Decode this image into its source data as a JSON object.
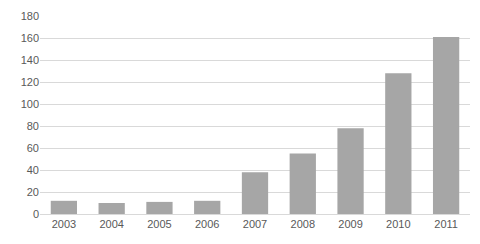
{
  "chart_data": {
    "type": "bar",
    "categories": [
      "2003",
      "2004",
      "2005",
      "2006",
      "2007",
      "2008",
      "2009",
      "2010",
      "2011"
    ],
    "values": [
      12,
      10,
      11,
      12,
      38,
      55,
      78,
      128,
      161
    ],
    "color": "#a6a6a6",
    "ylim": [
      0,
      180
    ],
    "yticks": [
      0,
      20,
      40,
      60,
      80,
      100,
      120,
      140,
      160,
      180
    ],
    "grid": true
  }
}
